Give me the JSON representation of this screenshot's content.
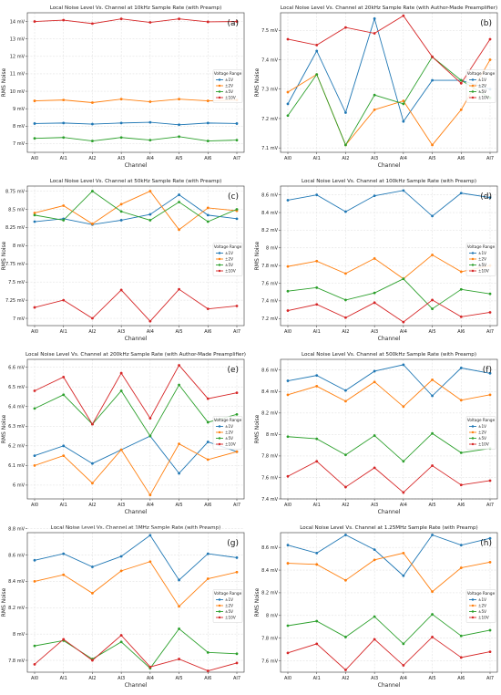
{
  "chart_data": [
    {
      "panel": "(a)",
      "type": "line",
      "title": "Local Noise Level Vs. Channel at 10kHz Sample Rate (with Preamp)",
      "xlabel": "Channel",
      "ylabel": "RMS Noise",
      "categories": [
        "AI0",
        "AI1",
        "AI2",
        "AI3",
        "AI4",
        "AI5",
        "AI6",
        "AI7"
      ],
      "ylim": [
        6.5,
        14.5
      ],
      "yticks": [
        7,
        8,
        9,
        10,
        11,
        12,
        13,
        14
      ],
      "ytick_labels": [
        "7 mV",
        "8 mV",
        "9 mV",
        "10 mV",
        "11 mV",
        "12 mV",
        "13 mV",
        "14 mV"
      ],
      "grid": true,
      "legend_title": "Voltage Range",
      "legend_position": "center-right",
      "series": [
        {
          "name": "±1V",
          "color": "#1f77b4",
          "values": [
            8.15,
            8.18,
            8.12,
            8.18,
            8.22,
            8.08,
            8.18,
            8.15
          ]
        },
        {
          "name": "±2V",
          "color": "#ff7f0e",
          "values": [
            9.45,
            9.5,
            9.35,
            9.55,
            9.4,
            9.55,
            9.45,
            9.5
          ]
        },
        {
          "name": "±5V",
          "color": "#2ca02c",
          "values": [
            7.3,
            7.35,
            7.15,
            7.35,
            7.2,
            7.4,
            7.15,
            7.2
          ]
        },
        {
          "name": "±10V",
          "color": "#d62728",
          "values": [
            14.0,
            14.08,
            13.88,
            14.15,
            13.95,
            14.15,
            13.98,
            14.0
          ]
        }
      ]
    },
    {
      "panel": "(b)",
      "type": "line",
      "title": "Local Noise Level Vs. Channel at 20kHz Sample Rate (with Author-Made Preamplifier)",
      "xlabel": "Channel",
      "ylabel": "RMS Noise",
      "categories": [
        "AI0",
        "AI1",
        "AI2",
        "AI3",
        "AI4",
        "AI5",
        "AI6",
        "AI7"
      ],
      "ylim": [
        7.085,
        7.56
      ],
      "yticks": [
        7.1,
        7.2,
        7.3,
        7.4,
        7.5
      ],
      "ytick_labels": [
        "7.1 mV",
        "7.2 mV",
        "7.3 mV",
        "7.4 mV",
        "7.5 mV"
      ],
      "grid": true,
      "legend_title": "Voltage Range",
      "legend_position": "center-right",
      "series": [
        {
          "name": "±1V",
          "color": "#1f77b4",
          "values": [
            7.25,
            7.43,
            7.22,
            7.54,
            7.19,
            7.33,
            7.33,
            7.3
          ]
        },
        {
          "name": "±2V",
          "color": "#ff7f0e",
          "values": [
            7.29,
            7.35,
            7.11,
            7.23,
            7.26,
            7.11,
            7.23,
            7.4
          ]
        },
        {
          "name": "±5V",
          "color": "#2ca02c",
          "values": [
            7.21,
            7.35,
            7.11,
            7.28,
            7.25,
            7.41,
            7.33,
            7.27
          ]
        },
        {
          "name": "±10V",
          "color": "#d62728",
          "values": [
            7.47,
            7.45,
            7.51,
            7.49,
            7.55,
            7.41,
            7.32,
            7.47
          ]
        }
      ]
    },
    {
      "panel": "(c)",
      "type": "line",
      "title": "Local Noise Level Vs. Channel at 50kHz Sample Rate (with Preamp)",
      "xlabel": "Channel",
      "ylabel": "RMS Noise",
      "categories": [
        "AI0",
        "AI1",
        "AI2",
        "AI3",
        "AI4",
        "AI5",
        "AI6",
        "AI7"
      ],
      "ylim": [
        6.9,
        8.82
      ],
      "yticks": [
        7,
        7.25,
        7.5,
        7.75,
        8,
        8.25,
        8.5,
        8.75
      ],
      "ytick_labels": [
        "7 mV",
        "7.25 mV",
        "7.5 mV",
        "7.75 mV",
        "8 mV",
        "8.25 mV",
        "8.5 mV",
        "8.75 mV"
      ],
      "grid": true,
      "legend_title": "Voltage Range",
      "legend_position": "center-right",
      "series": [
        {
          "name": "±1V",
          "color": "#1f77b4",
          "values": [
            8.33,
            8.37,
            8.29,
            8.35,
            8.43,
            8.7,
            8.42,
            8.37
          ]
        },
        {
          "name": "±2V",
          "color": "#ff7f0e",
          "values": [
            8.45,
            8.55,
            8.3,
            8.57,
            8.75,
            8.22,
            8.52,
            8.48
          ]
        },
        {
          "name": "±5V",
          "color": "#2ca02c",
          "values": [
            8.42,
            8.35,
            8.75,
            8.47,
            8.35,
            8.6,
            8.33,
            8.5
          ]
        },
        {
          "name": "±10V",
          "color": "#d62728",
          "values": [
            7.15,
            7.25,
            7.0,
            7.39,
            6.96,
            7.4,
            7.13,
            7.17
          ]
        }
      ]
    },
    {
      "panel": "(d)",
      "type": "line",
      "title": "Local Noise Level Vs. Channel at 100kHz Sample Rate (with Preamp)",
      "xlabel": "Channel",
      "ylabel": "RMS Noise",
      "categories": [
        "AI0",
        "AI1",
        "AI2",
        "AI3",
        "AI4",
        "AI5",
        "AI6",
        "AI7"
      ],
      "ylim": [
        7.12,
        8.7
      ],
      "yticks": [
        7.2,
        7.4,
        7.6,
        7.8,
        8,
        8.2,
        8.4,
        8.6
      ],
      "ytick_labels": [
        "7.2 mV",
        "7.4 mV",
        "7.6 mV",
        "7.8 mV",
        "8 mV",
        "8.2 mV",
        "8.4 mV",
        "8.6 mV"
      ],
      "grid": true,
      "legend_title": "Voltage Range",
      "legend_position": "center-right",
      "series": [
        {
          "name": "±1V",
          "color": "#1f77b4",
          "values": [
            8.54,
            8.6,
            8.41,
            8.59,
            8.65,
            8.36,
            8.62,
            8.57
          ]
        },
        {
          "name": "±2V",
          "color": "#ff7f0e",
          "values": [
            7.79,
            7.85,
            7.71,
            7.88,
            7.65,
            7.92,
            7.73,
            7.8
          ]
        },
        {
          "name": "±5V",
          "color": "#2ca02c",
          "values": [
            7.51,
            7.55,
            7.41,
            7.49,
            7.65,
            7.31,
            7.53,
            7.48
          ]
        },
        {
          "name": "±10V",
          "color": "#d62728",
          "values": [
            7.29,
            7.36,
            7.21,
            7.38,
            7.16,
            7.41,
            7.22,
            7.27
          ]
        }
      ]
    },
    {
      "panel": "(e)",
      "type": "line",
      "title": "Local Noise Level Vs. Channel at 200kHz Sample Rate (with Author-Made Preamplifier)",
      "xlabel": "Channel",
      "ylabel": "RMS Noise",
      "categories": [
        "AI0",
        "AI1",
        "AI2",
        "AI3",
        "AI4",
        "AI5",
        "AI6",
        "AI7"
      ],
      "ylim": [
        5.93,
        6.64
      ],
      "yticks": [
        6,
        6.1,
        6.2,
        6.3,
        6.4,
        6.5,
        6.6
      ],
      "ytick_labels": [
        "6 mV",
        "6.1 mV",
        "6.2 mV",
        "6.3 mV",
        "6.4 mV",
        "6.5 mV",
        "6.6 mV"
      ],
      "grid": true,
      "legend_title": "Voltage Range",
      "legend_position": "center-right",
      "series": [
        {
          "name": "±1V",
          "color": "#1f77b4",
          "values": [
            6.15,
            6.2,
            6.11,
            6.18,
            6.25,
            6.06,
            6.22,
            6.17
          ]
        },
        {
          "name": "±2V",
          "color": "#ff7f0e",
          "values": [
            6.1,
            6.15,
            6.01,
            6.18,
            5.95,
            6.21,
            6.13,
            6.17
          ]
        },
        {
          "name": "±5V",
          "color": "#2ca02c",
          "values": [
            6.39,
            6.46,
            6.31,
            6.48,
            6.25,
            6.51,
            6.32,
            6.36
          ]
        },
        {
          "name": "±10V",
          "color": "#d62728",
          "values": [
            6.48,
            6.55,
            6.31,
            6.57,
            6.34,
            6.61,
            6.44,
            6.47
          ]
        }
      ]
    },
    {
      "panel": "(f)",
      "type": "line",
      "title": "Local Noise Level Vs. Channel at 500kHz Sample Rate (with Preamp)",
      "xlabel": "Channel",
      "ylabel": "RMS Noise",
      "categories": [
        "AI0",
        "AI1",
        "AI2",
        "AI3",
        "AI4",
        "AI5",
        "AI6",
        "AI7"
      ],
      "ylim": [
        7.4,
        8.7
      ],
      "yticks": [
        7.4,
        7.6,
        7.8,
        8,
        8.2,
        8.4,
        8.6
      ],
      "ytick_labels": [
        "7.4 mV",
        "7.6 mV",
        "7.8 mV",
        "8 mV",
        "8.2 mV",
        "8.4 mV",
        "8.6 mV"
      ],
      "grid": true,
      "legend_title": "Voltage Range",
      "legend_position": "center-right",
      "series": [
        {
          "name": "±1V",
          "color": "#1f77b4",
          "values": [
            8.5,
            8.55,
            8.41,
            8.59,
            8.65,
            8.36,
            8.62,
            8.57
          ]
        },
        {
          "name": "±2V",
          "color": "#ff7f0e",
          "values": [
            8.37,
            8.45,
            8.31,
            8.49,
            8.26,
            8.51,
            8.32,
            8.37
          ]
        },
        {
          "name": "±5V",
          "color": "#2ca02c",
          "values": [
            7.98,
            7.96,
            7.81,
            7.99,
            7.75,
            8.01,
            7.83,
            7.87
          ]
        },
        {
          "name": "±10V",
          "color": "#d62728",
          "values": [
            7.61,
            7.75,
            7.51,
            7.69,
            7.46,
            7.71,
            7.53,
            7.57
          ]
        }
      ]
    },
    {
      "panel": "(g)",
      "type": "line",
      "title": "Local Noise Level Vs. Channel at 1MHz Sample Rate (with Preamp)",
      "xlabel": "Channel",
      "ylabel": "RMS Noise",
      "categories": [
        "AI0",
        "AI1",
        "AI2",
        "AI3",
        "AI4",
        "AI5",
        "AI6",
        "AI7"
      ],
      "ylim": [
        7.71,
        8.77
      ],
      "yticks": [
        7.8,
        8,
        8.2,
        8.4,
        8.6,
        8.8
      ],
      "ytick_labels": [
        "7.8 mV",
        "8 mV",
        "8.2 mV",
        "8.4 mV",
        "8.6 mV",
        "8.8 mV"
      ],
      "grid": true,
      "legend_title": "Voltage Range",
      "legend_position": "center-right",
      "series": [
        {
          "name": "±1V",
          "color": "#1f77b4",
          "values": [
            8.56,
            8.61,
            8.51,
            8.59,
            8.75,
            8.41,
            8.61,
            8.58
          ]
        },
        {
          "name": "±2V",
          "color": "#ff7f0e",
          "values": [
            8.4,
            8.45,
            8.31,
            8.48,
            8.55,
            8.21,
            8.42,
            8.47
          ]
        },
        {
          "name": "±5V",
          "color": "#2ca02c",
          "values": [
            7.91,
            7.95,
            7.81,
            7.94,
            7.74,
            8.04,
            7.86,
            7.85
          ]
        },
        {
          "name": "±10V",
          "color": "#d62728",
          "values": [
            7.77,
            7.96,
            7.8,
            7.99,
            7.75,
            7.81,
            7.72,
            7.78
          ]
        }
      ]
    },
    {
      "panel": "(h)",
      "type": "line",
      "title": "Local Noise Level Vs. Channel at 1.25MHz Sample Rate (with Preamp)",
      "xlabel": "Channel",
      "ylabel": "RMS Noise",
      "categories": [
        "AI0",
        "AI1",
        "AI2",
        "AI3",
        "AI4",
        "AI5",
        "AI6",
        "AI7"
      ],
      "ylim": [
        7.5,
        8.73
      ],
      "yticks": [
        7.6,
        7.8,
        8,
        8.2,
        8.4,
        8.6
      ],
      "ytick_labels": [
        "7.6 mV",
        "7.8 mV",
        "8 mV",
        "8.2 mV",
        "8.4 mV",
        "8.6 mV"
      ],
      "grid": true,
      "legend_title": "Voltage Range",
      "legend_position": "center-right",
      "series": [
        {
          "name": "±1V",
          "color": "#1f77b4",
          "values": [
            8.62,
            8.55,
            8.71,
            8.58,
            8.35,
            8.71,
            8.62,
            8.68
          ]
        },
        {
          "name": "±2V",
          "color": "#ff7f0e",
          "values": [
            8.46,
            8.45,
            8.31,
            8.49,
            8.55,
            8.21,
            8.42,
            8.47
          ]
        },
        {
          "name": "±5V",
          "color": "#2ca02c",
          "values": [
            7.91,
            7.95,
            7.81,
            7.99,
            7.75,
            8.01,
            7.82,
            7.87
          ]
        },
        {
          "name": "±10V",
          "color": "#d62728",
          "values": [
            7.67,
            7.75,
            7.52,
            7.79,
            7.56,
            7.81,
            7.63,
            7.68
          ]
        }
      ]
    }
  ]
}
